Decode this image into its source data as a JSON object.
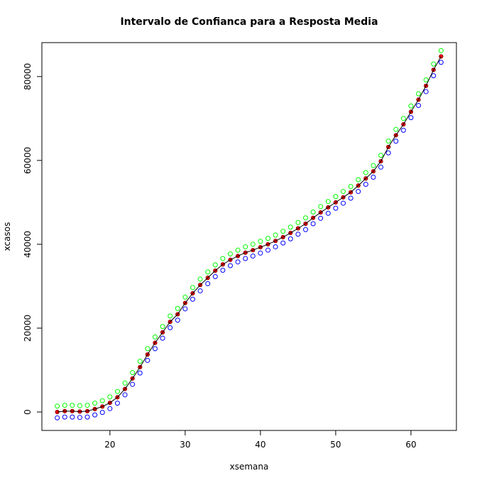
{
  "chart_data": {
    "type": "scatter",
    "title": "Intervalo de Confianca para a Resposta Media",
    "xlabel": "xsemana",
    "ylabel": "xcasos",
    "x": [
      13,
      14,
      15,
      16,
      17,
      18,
      19,
      20,
      21,
      22,
      23,
      24,
      25,
      26,
      27,
      28,
      29,
      30,
      31,
      32,
      33,
      34,
      35,
      36,
      37,
      38,
      39,
      40,
      41,
      42,
      43,
      44,
      45,
      46,
      47,
      48,
      49,
      50,
      51,
      52,
      53,
      54,
      55,
      56,
      57,
      58,
      59,
      60,
      61,
      62,
      63,
      64
    ],
    "series": [
      {
        "color": "#00ff00",
        "style": "open",
        "values": [
          1400,
          1600,
          1600,
          1500,
          1600,
          2100,
          2700,
          3600,
          4900,
          6900,
          9400,
          12100,
          15100,
          17900,
          20400,
          22900,
          24700,
          27400,
          29700,
          31700,
          33400,
          35100,
          36600,
          37700,
          38600,
          39400,
          40000,
          40700,
          41400,
          42200,
          43100,
          44100,
          45200,
          46300,
          47700,
          49000,
          50200,
          51400,
          52600,
          53800,
          55400,
          57100,
          58800,
          61200,
          64600,
          67400,
          70000,
          73000,
          75900,
          79200,
          83000,
          86200
        ]
      },
      {
        "color": "#0000ff",
        "style": "open",
        "values": [
          -1400,
          -1200,
          -1200,
          -1300,
          -1200,
          -700,
          -100,
          800,
          2100,
          4100,
          6600,
          9300,
          12300,
          15100,
          17600,
          20100,
          21900,
          24600,
          26900,
          28900,
          30600,
          32300,
          33800,
          34900,
          35800,
          36600,
          37200,
          37900,
          38600,
          39400,
          40300,
          41300,
          42400,
          43500,
          44900,
          46200,
          47400,
          48600,
          49800,
          51000,
          52600,
          54300,
          56000,
          58400,
          61800,
          64600,
          67200,
          70200,
          73100,
          76400,
          80200,
          83400
        ]
      },
      {
        "color": "#ff0000",
        "style": "filled",
        "values": [
          0,
          200,
          200,
          100,
          200,
          700,
          1300,
          2200,
          3500,
          5500,
          8000,
          10700,
          13700,
          16500,
          19000,
          21500,
          23300,
          26000,
          28300,
          30300,
          32000,
          33700,
          35200,
          36300,
          37200,
          38000,
          38600,
          39300,
          40000,
          40800,
          41700,
          42700,
          43800,
          44900,
          46300,
          47600,
          48800,
          50000,
          51200,
          52400,
          54000,
          55700,
          57400,
          59800,
          63200,
          66000,
          68600,
          71600,
          74500,
          77800,
          81600,
          84800
        ]
      },
      {
        "color": "#000000",
        "style": "line",
        "values": [
          0,
          200,
          200,
          100,
          200,
          700,
          1300,
          2200,
          3500,
          5500,
          8000,
          10700,
          13700,
          16500,
          19000,
          21500,
          23300,
          26000,
          28300,
          30300,
          32000,
          33700,
          35200,
          36300,
          37200,
          38000,
          38600,
          39300,
          40000,
          40800,
          41700,
          42700,
          43800,
          44900,
          46300,
          47600,
          48800,
          50000,
          51200,
          52400,
          54000,
          55700,
          57400,
          59800,
          63200,
          66000,
          68600,
          71600,
          74500,
          77800,
          81600,
          84800
        ]
      }
    ],
    "xlim": [
      10.96,
      66.04
    ],
    "xticks": [
      20,
      30,
      40,
      50,
      60
    ],
    "ylim": [
      -4400,
      88100
    ],
    "yticks": [
      0,
      20000,
      40000,
      60000,
      80000
    ]
  }
}
